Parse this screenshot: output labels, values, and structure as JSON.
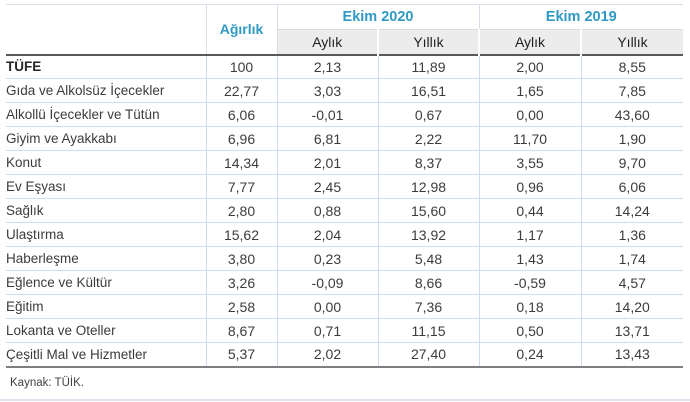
{
  "table": {
    "header": {
      "weight_label": "Ağırlık",
      "group_2020": "Ekim 2020",
      "group_2019": "Ekim 2019",
      "sub_2020_monthly": "Aylık",
      "sub_2020_annual": "Yıllık",
      "sub_2019_monthly": "Aylık",
      "sub_2019_annual": "Yıllık"
    },
    "rows": [
      {
        "label": "TÜFE",
        "bold": true,
        "values": [
          "100",
          "2,13",
          "11,89",
          "2,00",
          "8,55"
        ]
      },
      {
        "label": "Gıda ve Alkolsüz İçecekler",
        "bold": false,
        "values": [
          "22,77",
          "3,03",
          "16,51",
          "1,65",
          "7,85"
        ]
      },
      {
        "label": "Alkollü İçecekler ve Tütün",
        "bold": false,
        "values": [
          "6,06",
          "-0,01",
          "0,67",
          "0,00",
          "43,60"
        ]
      },
      {
        "label": "Giyim ve Ayakkabı",
        "bold": false,
        "values": [
          "6,96",
          "6,81",
          "2,22",
          "11,70",
          "1,90"
        ]
      },
      {
        "label": "Konut",
        "bold": false,
        "values": [
          "14,34",
          "2,01",
          "8,37",
          "3,55",
          "9,70"
        ]
      },
      {
        "label": "Ev Eşyası",
        "bold": false,
        "values": [
          "7,77",
          "2,45",
          "12,98",
          "0,96",
          "6,06"
        ]
      },
      {
        "label": "Sağlık",
        "bold": false,
        "values": [
          "2,80",
          "0,88",
          "15,60",
          "0,44",
          "14,24"
        ]
      },
      {
        "label": "Ulaştırma",
        "bold": false,
        "values": [
          "15,62",
          "2,04",
          "13,92",
          "1,17",
          "1,36"
        ]
      },
      {
        "label": "Haberleşme",
        "bold": false,
        "values": [
          "3,80",
          "0,23",
          "5,48",
          "1,43",
          "1,74"
        ]
      },
      {
        "label": "Eğlence ve Kültür",
        "bold": false,
        "values": [
          "3,26",
          "-0,09",
          "8,66",
          "-0,59",
          "4,57"
        ]
      },
      {
        "label": "Eğitim",
        "bold": false,
        "values": [
          "2,58",
          "0,00",
          "7,36",
          "0,18",
          "14,20"
        ]
      },
      {
        "label": "Lokanta ve Oteller",
        "bold": false,
        "values": [
          "8,67",
          "0,71",
          "11,15",
          "0,50",
          "13,71"
        ]
      },
      {
        "label": "Çeşitli Mal ve Hizmetler",
        "bold": false,
        "values": [
          "5,37",
          "2,02",
          "27,40",
          "0,24",
          "13,43"
        ]
      }
    ]
  },
  "footer": {
    "source": "Kaynak: TÜİK."
  },
  "colors": {
    "accent": "#2E9AC4",
    "subheader_bg": "#ECECEC",
    "row_border": "#CFDCEF",
    "dark_border": "#595959",
    "text": "#3C3C3C"
  }
}
